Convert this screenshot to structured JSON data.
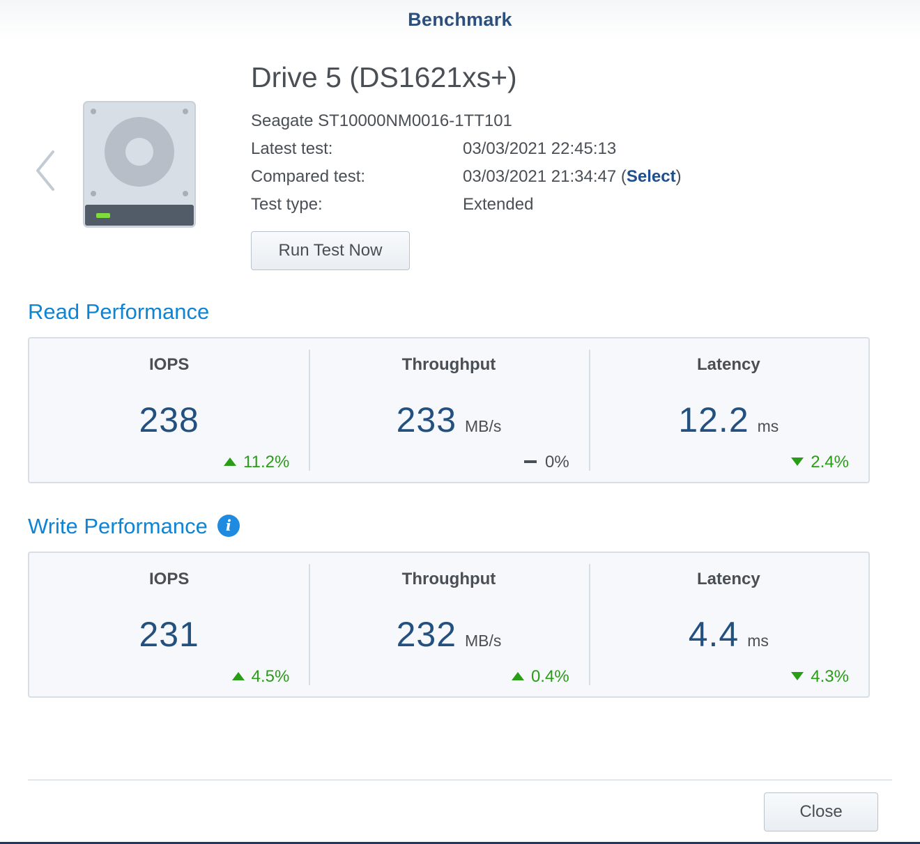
{
  "dialog": {
    "title": "Benchmark"
  },
  "drive": {
    "name": "Drive 5 (DS1621xs+)",
    "model": "Seagate ST10000NM0016-1TT101",
    "latest_test_label": "Latest test:",
    "latest_test_value": "03/03/2021 22:45:13",
    "compared_test_label": "Compared test:",
    "compared_test_value": "03/03/2021 21:34:47",
    "compared_open": "(",
    "select_link": "Select",
    "compared_close": ")",
    "test_type_label": "Test type:",
    "test_type_value": "Extended",
    "indicator_color": "#7fdc3c"
  },
  "actions": {
    "run_test": "Run Test Now",
    "close": "Close"
  },
  "icons": {
    "prev": "chevron-left-icon",
    "drive": "hard-drive-icon",
    "info": "info-icon"
  },
  "colors": {
    "section_title": "#0e84d4",
    "value": "#23507f",
    "positive_change": "#2a9d16"
  },
  "read": {
    "title": "Read Performance",
    "iops": {
      "label": "IOPS",
      "value": "238",
      "unit": "",
      "change": "11.2%",
      "trend": "up"
    },
    "throughput": {
      "label": "Throughput",
      "value": "233",
      "unit": "MB/s",
      "change": "0%",
      "trend": "flat"
    },
    "latency": {
      "label": "Latency",
      "value": "12.2",
      "unit": "ms",
      "change": "2.4%",
      "trend": "down"
    }
  },
  "write": {
    "title": "Write Performance",
    "info_glyph": "i",
    "iops": {
      "label": "IOPS",
      "value": "231",
      "unit": "",
      "change": "4.5%",
      "trend": "up"
    },
    "throughput": {
      "label": "Throughput",
      "value": "232",
      "unit": "MB/s",
      "change": "0.4%",
      "trend": "up"
    },
    "latency": {
      "label": "Latency",
      "value": "4.4",
      "unit": "ms",
      "change": "4.3%",
      "trend": "down"
    }
  }
}
